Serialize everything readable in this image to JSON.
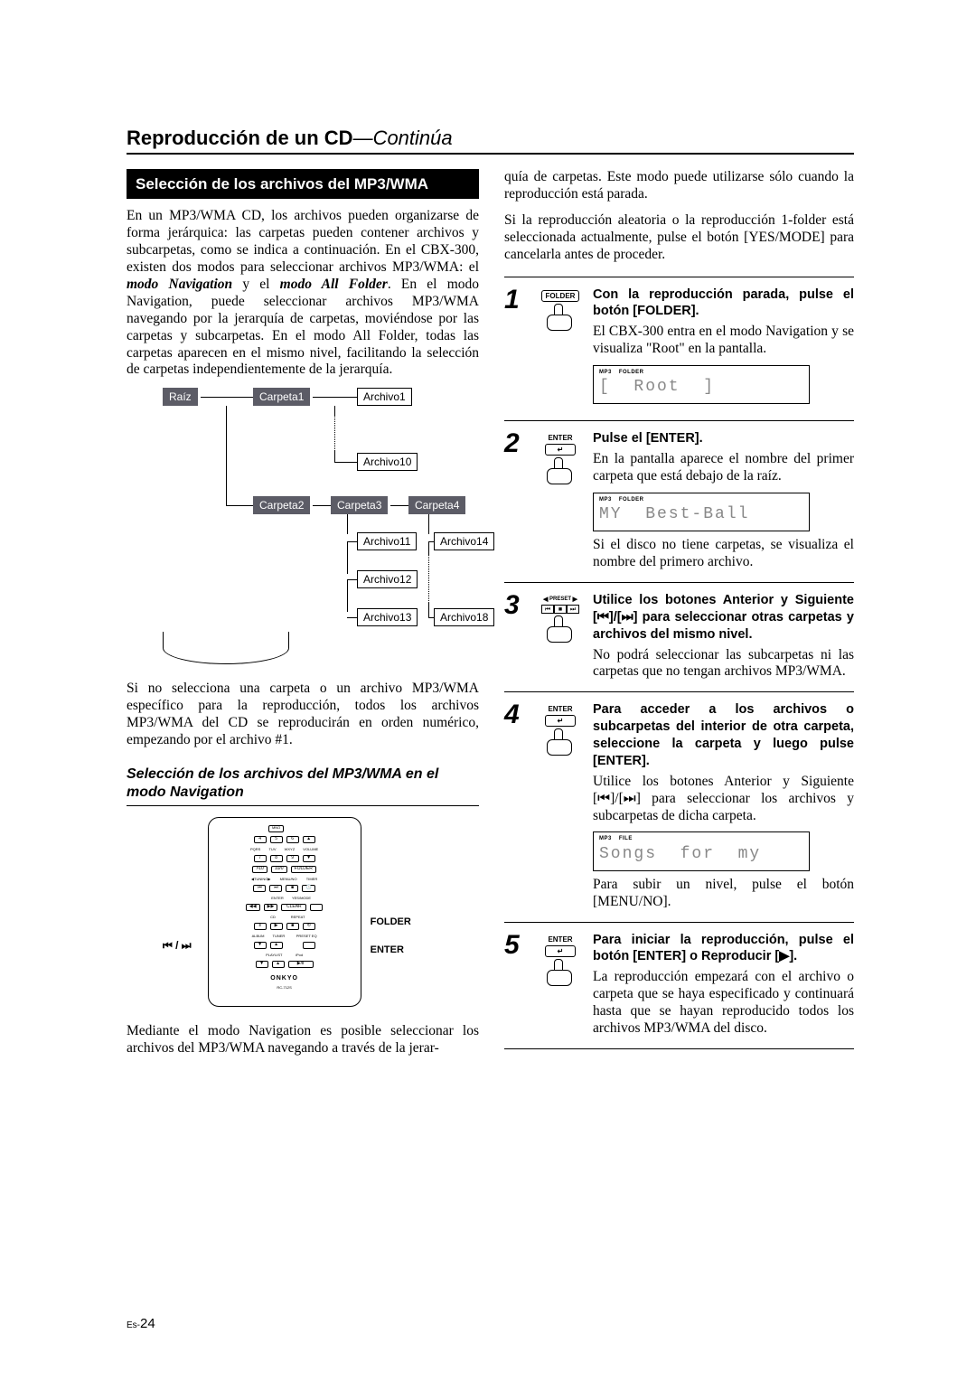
{
  "page": {
    "title_strong": "Reproducción de un CD",
    "title_italic": "—Continúa",
    "footer_prefix": "Es-",
    "footer_num": "24"
  },
  "left": {
    "heading": "Selección de los archivos del MP3/WMA",
    "intro": "En un MP3/WMA CD, los archivos pueden organizarse de forma jerárquica: las carpetas pueden contener archivos y subcarpetas, como se indica a continuación. En el CBX-300, existen dos modos para seleccionar archivos MP3/WMA: el ",
    "intro_m1": "modo Navigation",
    "intro_mid": " y el ",
    "intro_m2": "modo All Folder",
    "intro_after": ". En el modo Navigation, puede seleccionar archivos MP3/WMA navegando por la jerarquía de carpetas, moviéndose por las carpetas y subcarpetas. En el modo All Folder, todas las carpetas aparecen en el mismo nivel, facilitando la selección de carpetas independientemente de la jerarquía.",
    "hier": {
      "root": "Raíz",
      "c1": "Carpeta1",
      "c2": "Carpeta2",
      "c3": "Carpeta3",
      "c4": "Carpeta4",
      "a1": "Archivo1",
      "a10": "Archivo10",
      "a11": "Archivo11",
      "a12": "Archivo12",
      "a13": "Archivo13",
      "a14": "Archivo14",
      "a18": "Archivo18"
    },
    "afterhier": "Si no selecciona una carpeta o un archivo MP3/WMA específico para la reproducción, todos los archivos MP3/WMA del CD se reproducirán en orden numérico, empezando por el archivo #1.",
    "subhead": "Selección de los archivos del MP3/WMA en el modo Navigation",
    "remote_labels": {
      "prevnext": "⏮ / ⏭",
      "folder": "FOLDER",
      "enter": "ENTER",
      "logo": "ONKYO",
      "model": "RC-712S"
    },
    "remote_rows": {
      "r1": [
        "4",
        "5",
        "6",
        "▲"
      ],
      "r1b": [
        "PQRS",
        "TUV",
        "WXYZ",
        "VOLUME"
      ],
      "r2": [
        "7",
        "8",
        "9",
        "▼"
      ],
      "r3": [
        ">10",
        "10/0",
        "FOLDER"
      ],
      "r4lbl": [
        "◀TUNING▶",
        "MENU/NO",
        "TIMER"
      ],
      "r4": [
        "⏮",
        "⏭",
        "■",
        "🕒"
      ],
      "r5lbl": [
        "",
        "",
        "ENTER",
        "YES/MODE"
      ],
      "r5": [
        "◀◀",
        "▶▶",
        "CLEAR",
        ""
      ],
      "r6lbl": [
        "",
        "CD",
        "",
        "REPEAT"
      ],
      "r6": [
        "Ⅱ",
        "▶",
        "■",
        "⟲"
      ],
      "r7lbl": [
        "ALBUM",
        "TUNER",
        "",
        "PRESET EQ"
      ],
      "r7": [
        "▼",
        "▲",
        "",
        ""
      ],
      "r8lbl": [
        "PLAYLIST",
        "",
        "iPod",
        ""
      ],
      "r8": [
        "▼",
        "▲",
        "▶/Ⅱ",
        ""
      ]
    },
    "navpara": "Mediante el modo Navigation es posible seleccionar los archivos del MP3/WMA navegando a través de la jerar-"
  },
  "right": {
    "top1": "quía de carpetas. Este modo puede utilizarse sólo cuando la reproducción está parada.",
    "top2": "Si la reproducción aleatoria o la reproducción 1-folder está seleccionada actualmente, pulse el botón [YES/MODE] para cancelarla antes de proceder.",
    "steps": [
      {
        "n": "1",
        "icon": "FOLDER",
        "bold": "Con la reproducción parada, pulse el botón [FOLDER].",
        "body": "El CBX-300 entra en el modo Navigation y se visualiza \"Root\" en la pantalla.",
        "disp_tags": [
          "MP3",
          "FOLDER"
        ],
        "disp": "[  Root  ]",
        "after": ""
      },
      {
        "n": "2",
        "icon": "ENTER",
        "bold": "Pulse el [ENTER].",
        "body": "En la pantalla aparece el nombre del primer carpeta que está debajo de la raíz.",
        "disp_tags": [
          "MP3",
          "FOLDER"
        ],
        "disp": "MY  Best-Ball",
        "after": "Si el disco no tiene carpetas, se visualiza el nombre del primero archivo."
      },
      {
        "n": "3",
        "icon": "PRESET",
        "bold": "Utilice los botones Anterior y Siguiente [⏮]/[⏭] para seleccionar otras carpetas y archivos del mismo nivel.",
        "body": "No podrá seleccionar las subcarpetas ni las carpetas que no tengan archivos MP3/WMA.",
        "disp_tags": [],
        "disp": "",
        "after": ""
      },
      {
        "n": "4",
        "icon": "ENTER",
        "bold": "Para acceder a los archivos o subcarpetas del interior de otra carpeta, seleccione la carpeta y luego pulse [ENTER].",
        "body": "Utilice los botones Anterior y Siguiente [⏮]/[⏭] para seleccionar los archivos y subcarpetas de dicha carpeta.",
        "disp_tags": [
          "MP3",
          "FILE"
        ],
        "disp": "Songs  for  my",
        "after": "Para subir un nivel, pulse el botón [MENU/NO]."
      },
      {
        "n": "5",
        "icon": "ENTER",
        "bold": "Para iniciar la reproducción, pulse el botón [ENTER] o Reproducir [▶].",
        "body": "La reproducción empezará con el archivo o carpeta que se haya especificado y continuará hasta que se hayan reproducido todos los archivos MP3/WMA del disco.",
        "disp_tags": [],
        "disp": "",
        "after": ""
      }
    ]
  }
}
